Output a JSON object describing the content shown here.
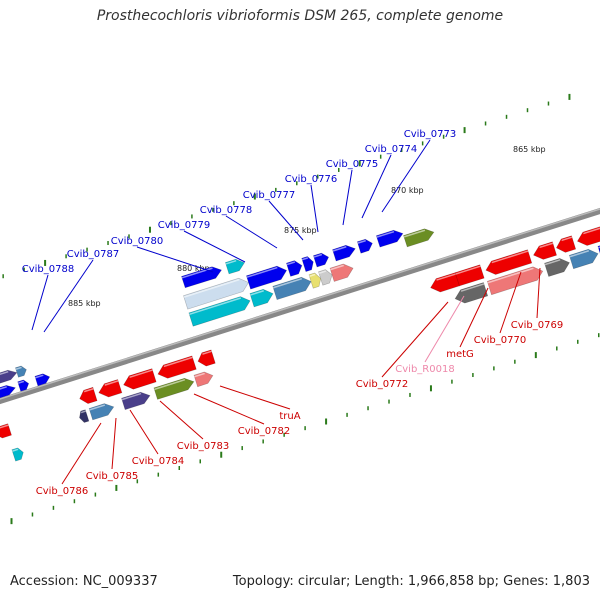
{
  "title": "Prosthecochloris vibrioformis DSM 265, complete genome",
  "footer": {
    "accession": "Accession: NC_009337",
    "summary": "Topology: circular; Length: 1,966,858 bp; Genes: 1,803"
  },
  "ticks": [
    {
      "label": "865 kbp"
    },
    {
      "label": "870 kbp"
    },
    {
      "label": "875 kbp"
    },
    {
      "label": "880 kbp"
    },
    {
      "label": "885 kbp"
    }
  ],
  "upper_genes": [
    {
      "label": "Cvib_0773",
      "color": "#0000cc"
    },
    {
      "label": "Cvib_0774",
      "color": "#0000cc"
    },
    {
      "label": "Cvib_0775",
      "color": "#0000cc"
    },
    {
      "label": "Cvib_0776",
      "color": "#0000cc"
    },
    {
      "label": "Cvib_0777",
      "color": "#0000cc"
    },
    {
      "label": "Cvib_0778",
      "color": "#0000cc"
    },
    {
      "label": "Cvib_0779",
      "color": "#0000cc"
    },
    {
      "label": "Cvib_0780",
      "color": "#0000cc"
    },
    {
      "label": "Cvib_0787",
      "color": "#0000cc"
    },
    {
      "label": "Cvib_0788",
      "color": "#0000cc"
    }
  ],
  "lower_genes": [
    {
      "label": "Cvib_0769",
      "color": "#cc0000"
    },
    {
      "label": "Cvib_0770",
      "color": "#cc0000"
    },
    {
      "label": "metG",
      "color": "#cc0000"
    },
    {
      "label": "Cvib_R0018",
      "color": "#ee88aa"
    },
    {
      "label": "Cvib_0772",
      "color": "#cc0000"
    },
    {
      "label": "truA",
      "color": "#cc0000"
    },
    {
      "label": "Cvib_0782",
      "color": "#cc0000"
    },
    {
      "label": "Cvib_0783",
      "color": "#cc0000"
    },
    {
      "label": "Cvib_0784",
      "color": "#cc0000"
    },
    {
      "label": "Cvib_0785",
      "color": "#cc0000"
    },
    {
      "label": "Cvib_0786",
      "color": "#cc0000"
    }
  ],
  "colors": {
    "backbone": "#888888",
    "tick": "#2a7a1a",
    "forward_strand": "#0000ee",
    "reverse_strand": "#ee0000",
    "cyan": "#00bbcc",
    "olive": "#6b8e23",
    "purple": "#4a3f8a",
    "steel": "#4682b4",
    "grey": "#666666",
    "salmon": "#ee7777",
    "magenta": "#ee00aa"
  }
}
